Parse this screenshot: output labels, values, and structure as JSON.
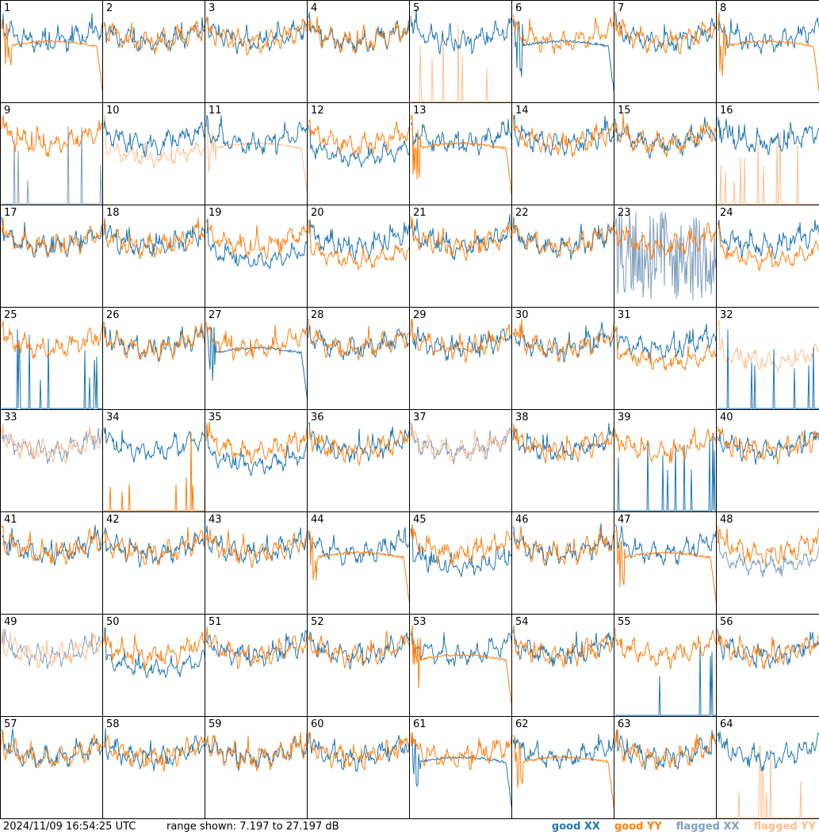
{
  "footer": {
    "timestamp": "2024/11/09 16:54:25 UTC",
    "range_text": "range shown: 7.197 to 27.197 dB"
  },
  "legend": [
    {
      "label": "good XX",
      "color": "#1f77b4"
    },
    {
      "label": "good YY",
      "color": "#ff7f0e"
    },
    {
      "label": "flagged XX",
      "color": "#7f9fbf"
    },
    {
      "label": "flagged YY",
      "color": "#ffbf8f"
    }
  ],
  "chart_data": {
    "type": "line",
    "layout": "8x8 small multiples of antenna spectra",
    "y_range_db": [
      7.197,
      27.197
    ],
    "panel_count": 64,
    "panels": [
      {
        "id": "1",
        "xx": "good",
        "yy": "good",
        "xx_shape": "normal",
        "yy_shape": "sag"
      },
      {
        "id": "2",
        "xx": "good",
        "yy": "good",
        "xx_shape": "normal",
        "yy_shape": "normal"
      },
      {
        "id": "3",
        "xx": "good",
        "yy": "good",
        "xx_shape": "normal",
        "yy_shape": "normal"
      },
      {
        "id": "4",
        "xx": "good",
        "yy": "good",
        "xx_shape": "normal",
        "yy_shape": "normal"
      },
      {
        "id": "5",
        "xx": "good",
        "yy": "flagged",
        "xx_shape": "normal",
        "yy_shape": "spikes"
      },
      {
        "id": "6",
        "xx": "good",
        "yy": "good",
        "xx_shape": "sag",
        "yy_shape": "normal"
      },
      {
        "id": "7",
        "xx": "good",
        "yy": "good",
        "xx_shape": "normal",
        "yy_shape": "normal"
      },
      {
        "id": "8",
        "xx": "good",
        "yy": "good",
        "xx_shape": "normal",
        "yy_shape": "sag"
      },
      {
        "id": "9",
        "xx": "flagged",
        "yy": "good",
        "xx_shape": "spikes",
        "yy_shape": "normal"
      },
      {
        "id": "10",
        "xx": "good",
        "yy": "flagged",
        "xx_shape": "normal",
        "yy_shape": "low"
      },
      {
        "id": "11",
        "xx": "good",
        "yy": "flagged",
        "xx_shape": "normal",
        "yy_shape": "sag"
      },
      {
        "id": "12",
        "xx": "good",
        "yy": "good",
        "xx_shape": "low",
        "yy_shape": "normal"
      },
      {
        "id": "13",
        "xx": "good",
        "yy": "good",
        "xx_shape": "normal",
        "yy_shape": "sag"
      },
      {
        "id": "14",
        "xx": "good",
        "yy": "good",
        "xx_shape": "normal",
        "yy_shape": "normal"
      },
      {
        "id": "15",
        "xx": "good",
        "yy": "good",
        "xx_shape": "normal",
        "yy_shape": "normal"
      },
      {
        "id": "16",
        "xx": "good",
        "yy": "flagged",
        "xx_shape": "normal",
        "yy_shape": "spikes"
      },
      {
        "id": "17",
        "xx": "good",
        "yy": "good",
        "xx_shape": "normal",
        "yy_shape": "normal"
      },
      {
        "id": "18",
        "xx": "good",
        "yy": "good",
        "xx_shape": "normal",
        "yy_shape": "normal"
      },
      {
        "id": "19",
        "xx": "good",
        "yy": "good",
        "xx_shape": "low",
        "yy_shape": "normal"
      },
      {
        "id": "20",
        "xx": "good",
        "yy": "good",
        "xx_shape": "normal",
        "yy_shape": "low"
      },
      {
        "id": "21",
        "xx": "good",
        "yy": "good",
        "xx_shape": "normal",
        "yy_shape": "normal"
      },
      {
        "id": "22",
        "xx": "good",
        "yy": "good",
        "xx_shape": "normal",
        "yy_shape": "normal"
      },
      {
        "id": "23",
        "xx": "flagged",
        "yy": "good",
        "xx_shape": "noisy",
        "yy_shape": "normal"
      },
      {
        "id": "24",
        "xx": "good",
        "yy": "good",
        "xx_shape": "normal",
        "yy_shape": "low"
      },
      {
        "id": "25",
        "xx": "good",
        "yy": "good",
        "xx_shape": "spikes",
        "yy_shape": "normal"
      },
      {
        "id": "26",
        "xx": "good",
        "yy": "good",
        "xx_shape": "normal",
        "yy_shape": "normal"
      },
      {
        "id": "27",
        "xx": "good",
        "yy": "good",
        "xx_shape": "sag",
        "yy_shape": "normal"
      },
      {
        "id": "28",
        "xx": "good",
        "yy": "good",
        "xx_shape": "normal",
        "yy_shape": "normal"
      },
      {
        "id": "29",
        "xx": "good",
        "yy": "good",
        "xx_shape": "normal",
        "yy_shape": "normal"
      },
      {
        "id": "30",
        "xx": "good",
        "yy": "good",
        "xx_shape": "normal",
        "yy_shape": "normal"
      },
      {
        "id": "31",
        "xx": "good",
        "yy": "good",
        "xx_shape": "normal",
        "yy_shape": "low"
      },
      {
        "id": "32",
        "xx": "good",
        "yy": "flagged",
        "xx_shape": "spikes",
        "yy_shape": "low"
      },
      {
        "id": "33",
        "xx": "flagged",
        "yy": "flagged",
        "xx_shape": "normal",
        "yy_shape": "normal"
      },
      {
        "id": "34",
        "xx": "good",
        "yy": "good",
        "xx_shape": "normal",
        "yy_shape": "spikes"
      },
      {
        "id": "35",
        "xx": "good",
        "yy": "good",
        "xx_shape": "low",
        "yy_shape": "normal"
      },
      {
        "id": "36",
        "xx": "good",
        "yy": "good",
        "xx_shape": "normal",
        "yy_shape": "normal"
      },
      {
        "id": "37",
        "xx": "flagged",
        "yy": "flagged",
        "xx_shape": "normal",
        "yy_shape": "normal"
      },
      {
        "id": "38",
        "xx": "good",
        "yy": "good",
        "xx_shape": "normal",
        "yy_shape": "normal"
      },
      {
        "id": "39",
        "xx": "good",
        "yy": "good",
        "xx_shape": "spikes",
        "yy_shape": "normal"
      },
      {
        "id": "40",
        "xx": "good",
        "yy": "good",
        "xx_shape": "normal",
        "yy_shape": "normal"
      },
      {
        "id": "41",
        "xx": "good",
        "yy": "good",
        "xx_shape": "normal",
        "yy_shape": "normal"
      },
      {
        "id": "42",
        "xx": "good",
        "yy": "good",
        "xx_shape": "normal",
        "yy_shape": "normal"
      },
      {
        "id": "43",
        "xx": "good",
        "yy": "good",
        "xx_shape": "normal",
        "yy_shape": "normal"
      },
      {
        "id": "44",
        "xx": "good",
        "yy": "good",
        "xx_shape": "normal",
        "yy_shape": "sag"
      },
      {
        "id": "45",
        "xx": "good",
        "yy": "good",
        "xx_shape": "low",
        "yy_shape": "normal"
      },
      {
        "id": "46",
        "xx": "good",
        "yy": "good",
        "xx_shape": "normal",
        "yy_shape": "normal"
      },
      {
        "id": "47",
        "xx": "good",
        "yy": "good",
        "xx_shape": "normal",
        "yy_shape": "sag"
      },
      {
        "id": "48",
        "xx": "flagged",
        "yy": "good",
        "xx_shape": "low",
        "yy_shape": "normal"
      },
      {
        "id": "49",
        "xx": "flagged",
        "yy": "flagged",
        "xx_shape": "normal",
        "yy_shape": "normal"
      },
      {
        "id": "50",
        "xx": "good",
        "yy": "good",
        "xx_shape": "low",
        "yy_shape": "normal"
      },
      {
        "id": "51",
        "xx": "good",
        "yy": "good",
        "xx_shape": "normal",
        "yy_shape": "normal"
      },
      {
        "id": "52",
        "xx": "good",
        "yy": "good",
        "xx_shape": "normal",
        "yy_shape": "normal"
      },
      {
        "id": "53",
        "xx": "good",
        "yy": "good",
        "xx_shape": "normal",
        "yy_shape": "sag"
      },
      {
        "id": "54",
        "xx": "good",
        "yy": "good",
        "xx_shape": "normal",
        "yy_shape": "normal"
      },
      {
        "id": "55",
        "xx": "good",
        "yy": "good",
        "xx_shape": "spikes",
        "yy_shape": "normal"
      },
      {
        "id": "56",
        "xx": "good",
        "yy": "good",
        "xx_shape": "normal",
        "yy_shape": "normal"
      },
      {
        "id": "57",
        "xx": "good",
        "yy": "good",
        "xx_shape": "normal",
        "yy_shape": "normal"
      },
      {
        "id": "58",
        "xx": "good",
        "yy": "good",
        "xx_shape": "normal",
        "yy_shape": "normal"
      },
      {
        "id": "59",
        "xx": "good",
        "yy": "good",
        "xx_shape": "normal",
        "yy_shape": "normal"
      },
      {
        "id": "60",
        "xx": "good",
        "yy": "good",
        "xx_shape": "normal",
        "yy_shape": "normal"
      },
      {
        "id": "61",
        "xx": "good",
        "yy": "good",
        "xx_shape": "sag",
        "yy_shape": "normal"
      },
      {
        "id": "62",
        "xx": "good",
        "yy": "good",
        "xx_shape": "normal",
        "yy_shape": "sag"
      },
      {
        "id": "63",
        "xx": "good",
        "yy": "good",
        "xx_shape": "normal",
        "yy_shape": "normal"
      },
      {
        "id": "64",
        "xx": "good",
        "yy": "flagged",
        "xx_shape": "normal",
        "yy_shape": "spikes"
      }
    ]
  }
}
